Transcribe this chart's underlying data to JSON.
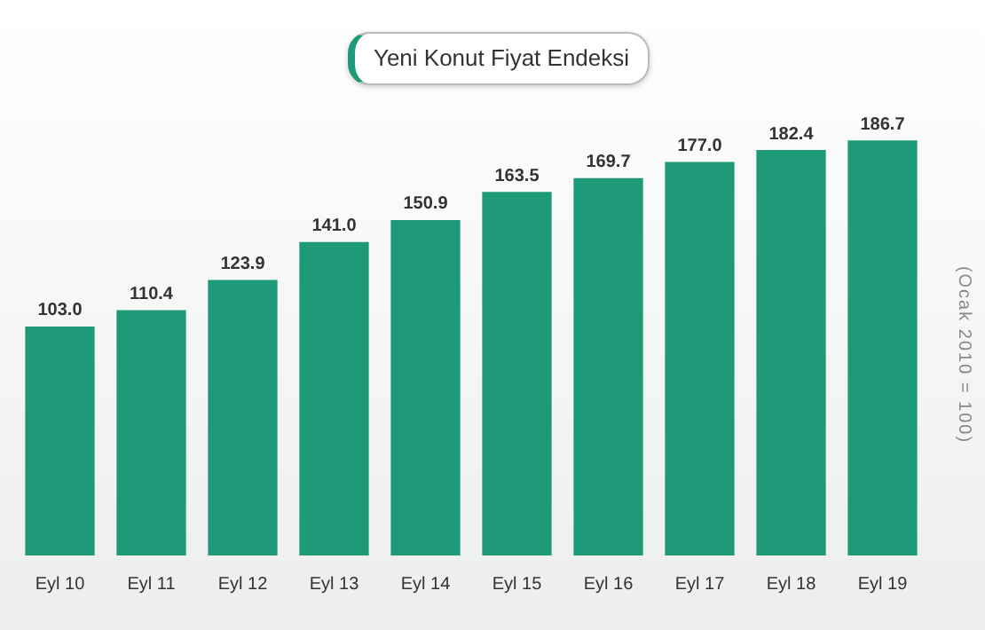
{
  "chart_data": {
    "type": "bar",
    "title": "Yeni Konut Fiyat Endeksi",
    "ylabel": "(Ocak 2010 = 100)",
    "categories": [
      "Eyl 10",
      "Eyl 11",
      "Eyl 12",
      "Eyl 13",
      "Eyl 14",
      "Eyl 15",
      "Eyl 16",
      "Eyl 17",
      "Eyl 18",
      "Eyl 19"
    ],
    "values": [
      103.0,
      110.4,
      123.9,
      141.0,
      150.9,
      163.5,
      169.7,
      177.0,
      182.4,
      186.7
    ],
    "value_labels": [
      "103.0",
      "110.4",
      "123.9",
      "141.0",
      "150.9",
      "163.5",
      "169.7",
      "177.0",
      "182.4",
      "186.7"
    ],
    "color": "#1f9a78",
    "grid": false,
    "legend": false
  }
}
